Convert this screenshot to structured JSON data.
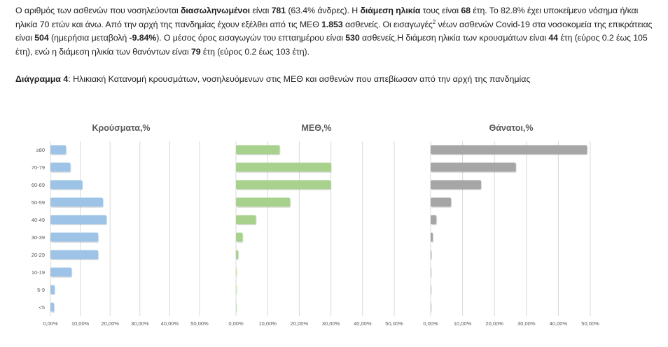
{
  "paragraph": [
    {
      "t": "Ο αριθμός των ασθενών που νοσηλεύονται ",
      "b": false
    },
    {
      "t": "διασωληνωμένοι",
      "b": true
    },
    {
      "t": " είναι ",
      "b": false
    },
    {
      "t": "781",
      "b": true
    },
    {
      "t": " (63.4% άνδρες).  Η ",
      "b": false
    },
    {
      "t": "διάμεση ηλικία",
      "b": true
    },
    {
      "t": " τους είναι ",
      "b": false
    },
    {
      "t": "68",
      "b": true
    },
    {
      "t": " έτη.  Το 82.8% έχει υποκείμενο νόσημα ή/και ηλικία 70 ετών και άνω. Από την αρχή της πανδημίας έχουν εξέλθει από τις ΜΕΘ ",
      "b": false
    },
    {
      "t": "1.853",
      "b": true
    },
    {
      "t": " ασθενείς. Οι εισαγωγές",
      "b": false
    },
    {
      "t": "2",
      "sup": true
    },
    {
      "t": " νέων ασθενών Covid-19 στα νοσοκομεία της επικράτειας είναι ",
      "b": false
    },
    {
      "t": "504",
      "b": true
    },
    {
      "t": " (ημερήσια μεταβολή ",
      "b": false
    },
    {
      "t": "-9.84%",
      "b": true
    },
    {
      "t": "). Ο μέσος όρος εισαγωγών του επταημέρου είναι ",
      "b": false
    },
    {
      "t": "530",
      "b": true
    },
    {
      "t": " ασθενείς.Η διάμεση ηλικία των κρουσμάτων είναι ",
      "b": false
    },
    {
      "t": "44",
      "b": true
    },
    {
      "t": " έτη (εύρος 0.2 έως 105 έτη), ενώ η διάμεση ηλικία των θανόντων είναι ",
      "b": false
    },
    {
      "t": "79",
      "b": true
    },
    {
      "t": " έτη (εύρος 0.2 έως 103 έτη).",
      "b": false
    }
  ],
  "caption": {
    "label": "Διάγραμμα 4",
    "text": ": Ηλικιακή Κατανομή κρουσμάτων, νοσηλευόμενων στις ΜΕΘ και ασθενών που απεβίωσαν από την αρχή της πανδημίας"
  },
  "chart_data": [
    {
      "type": "bar",
      "orientation": "horizontal",
      "title": "Κρούσματα,%",
      "color": "#9dc3e6",
      "categories": [
        "≥80",
        "70-79",
        "60-69",
        "50-59",
        "40-49",
        "30-39",
        "20-29",
        "10-19",
        "5-9",
        "<5"
      ],
      "values": [
        5.2,
        6.7,
        10.7,
        17.6,
        18.8,
        16.0,
        16.0,
        7.1,
        1.4,
        1.2
      ],
      "xlim": [
        0,
        50
      ],
      "xticks": [
        "0,00%",
        "10,00%",
        "20,00%",
        "30,00%",
        "40,00%",
        "50,00%"
      ],
      "grid": true
    },
    {
      "type": "bar",
      "orientation": "horizontal",
      "title": "ΜΕΘ,%",
      "color": "#a9d18e",
      "categories": [
        "≥80",
        "70-79",
        "60-69",
        "50-59",
        "40-49",
        "30-39",
        "20-29",
        "10-19",
        "5-9",
        "<5"
      ],
      "values": [
        13.8,
        30.0,
        29.9,
        17.1,
        6.3,
        2.1,
        0.7,
        0.1,
        0.0,
        0.1
      ],
      "xlim": [
        0,
        50
      ],
      "xticks": [
        "0,00%",
        "10,00%",
        "20,00%",
        "30,00%",
        "40,00%",
        "50,00%"
      ],
      "grid": true
    },
    {
      "type": "bar",
      "orientation": "horizontal",
      "title": "Θάνατοι,%",
      "color": "#a6a6a6",
      "categories": [
        "≥80",
        "70-79",
        "60-69",
        "50-59",
        "40-49",
        "30-39",
        "20-29",
        "10-19",
        "5-9",
        "<5"
      ],
      "values": [
        49.0,
        26.7,
        15.8,
        6.4,
        1.8,
        0.7,
        0.2,
        0.0,
        0.0,
        0.0
      ],
      "xlim": [
        0,
        50
      ],
      "xticks": [
        "0,00%",
        "10,00%",
        "20,00%",
        "30,00%",
        "40,00%",
        "50,00%"
      ],
      "grid": true
    }
  ]
}
